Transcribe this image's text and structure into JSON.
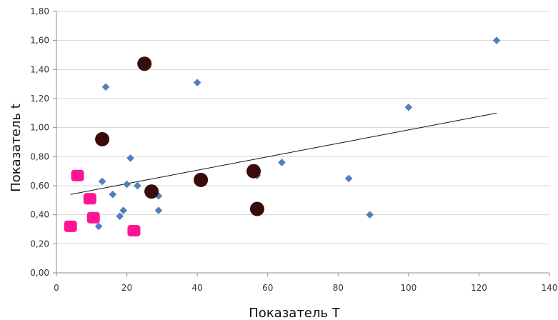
{
  "chart_data": {
    "type": "scatter",
    "title": "",
    "xlabel": "Показатель T",
    "ylabel": "Показатель t",
    "xlim": [
      0,
      140
    ],
    "ylim": [
      0,
      1.8
    ],
    "x_ticks": [
      0,
      20,
      40,
      60,
      80,
      100,
      120,
      140
    ],
    "y_ticks": [
      0,
      0.2,
      0.4,
      0.6,
      0.8,
      1.0,
      1.2,
      1.4,
      1.6,
      1.8
    ],
    "x_tick_labels": [
      "0",
      "20",
      "40",
      "60",
      "80",
      "100",
      "120",
      "140"
    ],
    "y_tick_labels": [
      "0,00",
      "0,20",
      "0,40",
      "0,60",
      "0,80",
      "1,00",
      "1,20",
      "1,40",
      "1,60",
      "1,80"
    ],
    "grid": {
      "x": false,
      "y": true
    },
    "legend": "none",
    "series": [
      {
        "marker": "diamond",
        "color": "#4F81BD",
        "points": [
          {
            "x": 12,
            "y": 0.32
          },
          {
            "x": 13,
            "y": 0.63
          },
          {
            "x": 14,
            "y": 1.28
          },
          {
            "x": 16,
            "y": 0.54
          },
          {
            "x": 18,
            "y": 0.39
          },
          {
            "x": 19,
            "y": 0.43
          },
          {
            "x": 20,
            "y": 0.61
          },
          {
            "x": 21,
            "y": 0.79
          },
          {
            "x": 23,
            "y": 0.6
          },
          {
            "x": 29,
            "y": 0.53
          },
          {
            "x": 29,
            "y": 0.43
          },
          {
            "x": 40,
            "y": 1.31
          },
          {
            "x": 57,
            "y": 0.67
          },
          {
            "x": 64,
            "y": 0.76
          },
          {
            "x": 83,
            "y": 0.65
          },
          {
            "x": 89,
            "y": 0.4
          },
          {
            "x": 100,
            "y": 1.14
          },
          {
            "x": 125,
            "y": 1.6
          }
        ]
      },
      {
        "marker": "circle",
        "color": "#3A0B0B",
        "points": [
          {
            "x": 13,
            "y": 0.92
          },
          {
            "x": 25,
            "y": 1.44
          },
          {
            "x": 27,
            "y": 0.56
          },
          {
            "x": 41,
            "y": 0.64
          },
          {
            "x": 56,
            "y": 0.7
          },
          {
            "x": 57,
            "y": 0.44
          }
        ]
      },
      {
        "marker": "rounded-square",
        "color": "#FF1493",
        "points": [
          {
            "x": 4,
            "y": 0.32
          },
          {
            "x": 6,
            "y": 0.67
          },
          {
            "x": 9.5,
            "y": 0.51
          },
          {
            "x": 10.5,
            "y": 0.38
          },
          {
            "x": 22,
            "y": 0.29
          }
        ]
      }
    ],
    "trendline": {
      "from": {
        "x": 4,
        "y": 0.54
      },
      "to": {
        "x": 125,
        "y": 1.1
      },
      "color": "#111111"
    }
  }
}
